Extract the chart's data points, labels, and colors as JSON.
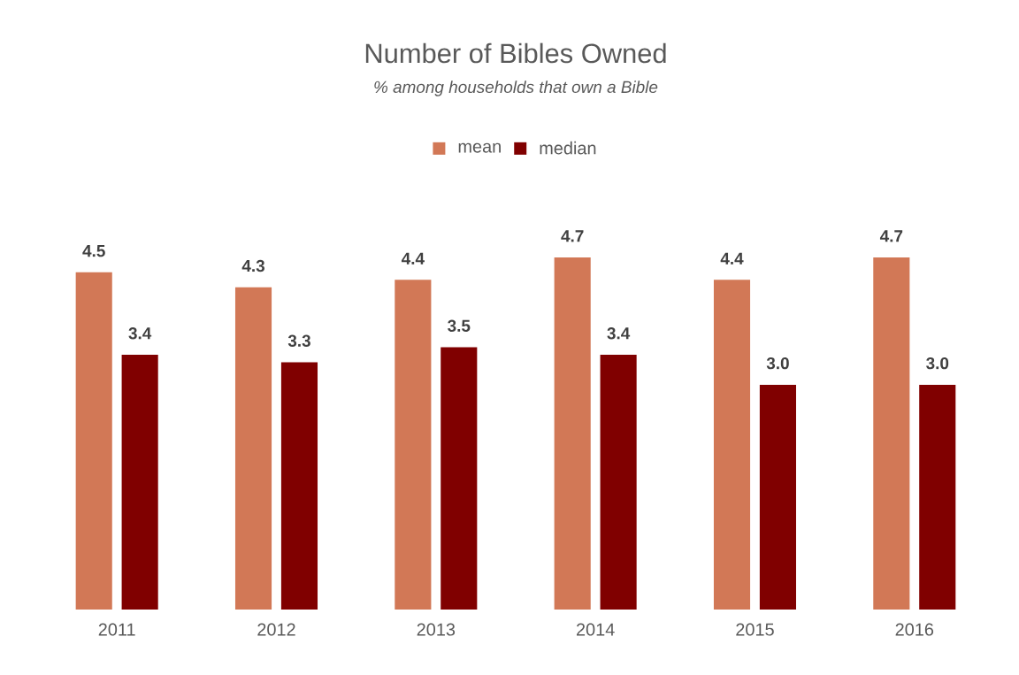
{
  "chart_data": {
    "type": "bar",
    "title": "Number of Bibles Owned",
    "subtitle": "% among households that own a Bible",
    "categories": [
      "2011",
      "2012",
      "2013",
      "2014",
      "2015",
      "2016"
    ],
    "series": [
      {
        "name": "mean",
        "color": "#d27856",
        "values": [
          4.5,
          4.3,
          4.4,
          4.7,
          4.4,
          4.7
        ],
        "value_labels": [
          "4.5",
          "4.3",
          "4.4",
          "4.7",
          "4.4",
          "4.7"
        ]
      },
      {
        "name": "median",
        "color": "#800000",
        "values": [
          3.4,
          3.3,
          3.5,
          3.4,
          3.0,
          3.0
        ],
        "value_labels": [
          "3.4",
          "3.3",
          "3.5",
          "3.4",
          "3.0",
          "3.0"
        ]
      }
    ],
    "legend": "top"
  }
}
